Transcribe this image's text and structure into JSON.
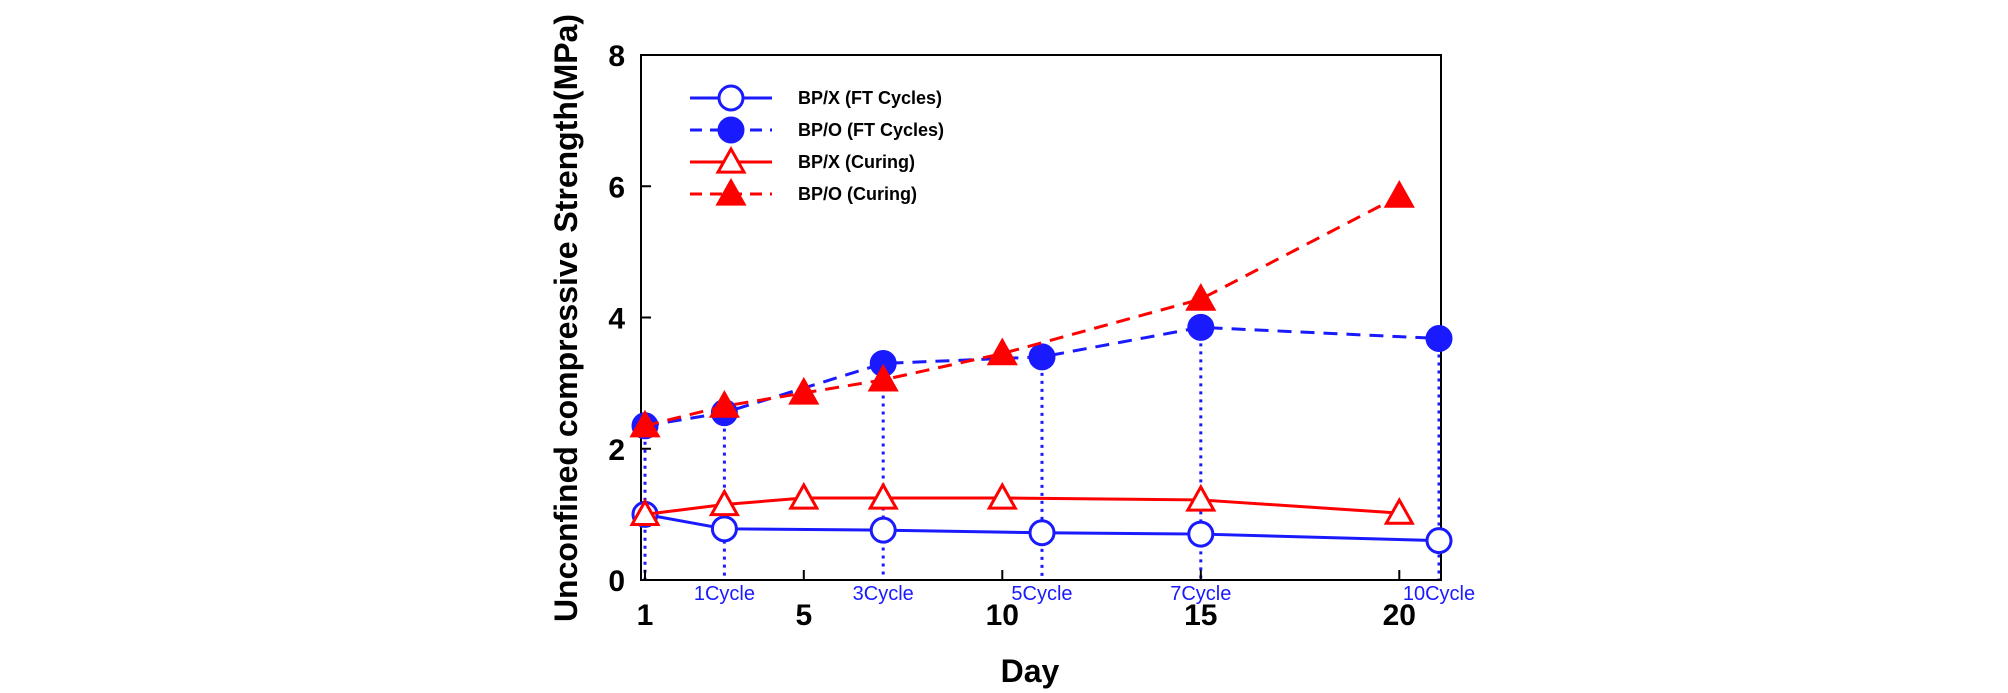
{
  "chart_data": {
    "type": "line",
    "title": "",
    "xlabel": "Day",
    "ylabel": "Unconfined compressive Strength(MPa)",
    "xlim": [
      1,
      21
    ],
    "ylim": [
      0,
      8
    ],
    "x_ticks": [
      1,
      5,
      10,
      15,
      20
    ],
    "y_ticks": [
      0,
      2,
      4,
      6,
      8
    ],
    "grid": false,
    "legend_position": "top-left",
    "series": [
      {
        "name": "BP/X (FT Cycles)",
        "color": "#1a1aff",
        "line_style": "solid",
        "marker": "open-circle",
        "x": [
          1,
          3,
          7,
          11,
          15,
          21
        ],
        "y": [
          1.0,
          0.78,
          0.76,
          0.72,
          0.7,
          0.6
        ]
      },
      {
        "name": "BP/O (FT Cycles)",
        "color": "#1a1aff",
        "line_style": "dashed",
        "marker": "filled-circle",
        "x": [
          1,
          3,
          7,
          11,
          15,
          21
        ],
        "y": [
          2.35,
          2.55,
          3.3,
          3.4,
          3.85,
          3.68
        ]
      },
      {
        "name": "BP/X (Curing)",
        "color": "#ff0000",
        "line_style": "solid",
        "marker": "open-triangle",
        "x": [
          1,
          3,
          5,
          7,
          10,
          15,
          20
        ],
        "y": [
          1.0,
          1.15,
          1.25,
          1.25,
          1.25,
          1.22,
          1.02
        ]
      },
      {
        "name": "BP/O (Curing)",
        "color": "#ff0000",
        "line_style": "dashed",
        "marker": "filled-triangle",
        "x": [
          1,
          3,
          5,
          7,
          10,
          15,
          20
        ],
        "y": [
          2.35,
          2.65,
          2.85,
          3.05,
          3.45,
          4.28,
          5.85
        ]
      }
    ],
    "cycle_markers": [
      {
        "label": "1Cycle",
        "x": 3
      },
      {
        "label": "3Cycle",
        "x": 7
      },
      {
        "label": "5Cycle",
        "x": 11
      },
      {
        "label": "7Cycle",
        "x": 15
      },
      {
        "label": "10Cycle",
        "x": 21
      }
    ],
    "cycle_line_color": "#1a1aff",
    "start_line_x": 1
  }
}
